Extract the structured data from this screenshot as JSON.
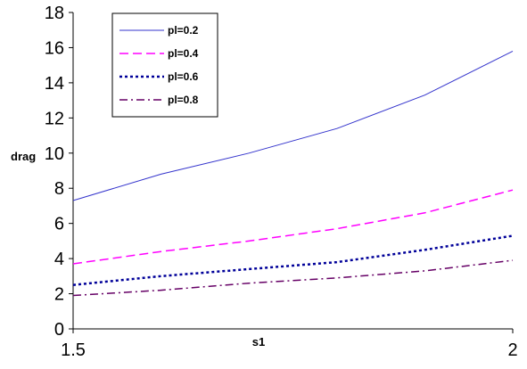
{
  "chart_data": {
    "type": "line",
    "title": "",
    "xlabel": "s1",
    "ylabel": "drag",
    "xlim": [
      1.5,
      2
    ],
    "ylim": [
      0,
      18
    ],
    "x_ticks": [
      "1.5",
      "2"
    ],
    "y_ticks": [
      "0",
      "2",
      "4",
      "6",
      "8",
      "10",
      "12",
      "14",
      "16",
      "18"
    ],
    "grid": false,
    "legend_position": "top-left",
    "x": [
      1.5,
      1.6,
      1.7,
      1.8,
      1.9,
      2.0
    ],
    "series": [
      {
        "name": "pl=0.2",
        "color": "#3333cc",
        "dash": "solid",
        "values": [
          7.3,
          8.8,
          10.0,
          11.4,
          13.3,
          15.8
        ]
      },
      {
        "name": "pl=0.4",
        "color": "#ff00ff",
        "dash": "dashed",
        "values": [
          3.7,
          4.4,
          5.0,
          5.7,
          6.6,
          7.9
        ]
      },
      {
        "name": "pl=0.6",
        "color": "#000099",
        "dash": "dotted",
        "values": [
          2.5,
          3.0,
          3.4,
          3.8,
          4.5,
          5.3
        ]
      },
      {
        "name": "pl=0.8",
        "color": "#660066",
        "dash": "dashdot",
        "values": [
          1.9,
          2.2,
          2.6,
          2.9,
          3.3,
          3.9
        ]
      }
    ]
  }
}
